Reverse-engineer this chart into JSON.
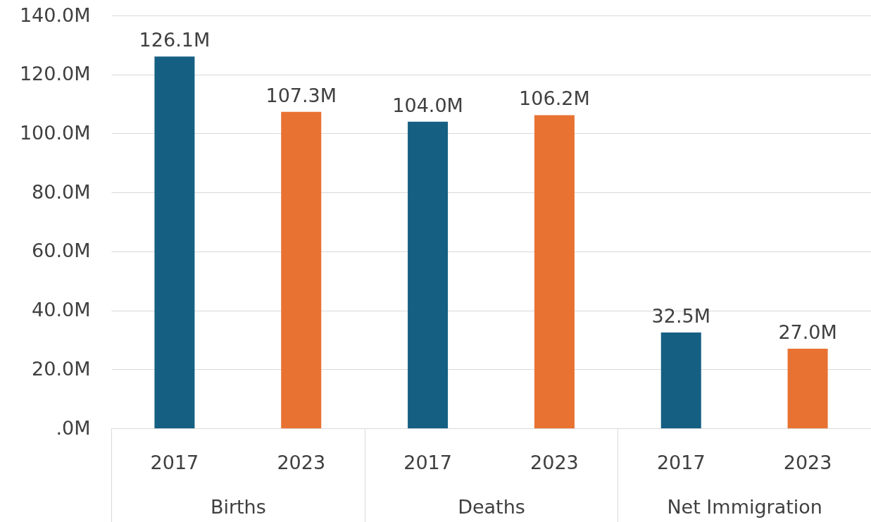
{
  "chart_data": {
    "type": "bar",
    "categories": [
      "Births",
      "Deaths",
      "Net Immigration"
    ],
    "series": [
      {
        "name": "2017",
        "color": "#155f83",
        "values": [
          126.1,
          104.0,
          32.5
        ],
        "value_labels": [
          "126.1M",
          "104.0M",
          "32.5M"
        ]
      },
      {
        "name": "2023",
        "color": "#e87232",
        "values": [
          107.3,
          106.2,
          27.0
        ],
        "value_labels": [
          "107.3M",
          "106.2M",
          "27.0M"
        ]
      }
    ],
    "ylim": [
      0,
      140
    ],
    "yticks": [
      {
        "value": 0,
        "label": ".0M"
      },
      {
        "value": 20,
        "label": "20.0M"
      },
      {
        "value": 40,
        "label": "40.0M"
      },
      {
        "value": 60,
        "label": "60.0M"
      },
      {
        "value": 80,
        "label": "80.0M"
      },
      {
        "value": 100,
        "label": "100.0M"
      },
      {
        "value": 120,
        "label": "120.0M"
      },
      {
        "value": 140,
        "label": "140.0M"
      }
    ],
    "grid": "y",
    "legend": false
  }
}
